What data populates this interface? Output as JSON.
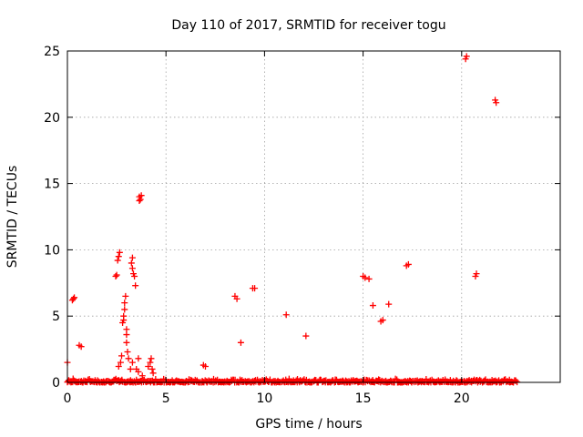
{
  "chart_data": {
    "type": "scatter",
    "title": "Day 110 of 2017, SRMTID for receiver togu",
    "xlabel": "GPS time / hours",
    "ylabel": "SRMTID / TECUs",
    "xlim": [
      0,
      25
    ],
    "ylim": [
      0,
      25
    ],
    "xticks": [
      "0",
      "5",
      "10",
      "15",
      "20"
    ],
    "xtick_values": [
      0,
      5,
      10,
      15,
      20
    ],
    "yticks": [
      "0",
      "5",
      "10",
      "15",
      "20",
      "25"
    ],
    "ytick_values": [
      0,
      5,
      10,
      15,
      20,
      25
    ],
    "grid": true,
    "marker": "plus",
    "color": "#ff0000",
    "series": [
      {
        "name": "SRMTID",
        "points": [
          [
            0.0,
            1.5
          ],
          [
            0.25,
            6.2
          ],
          [
            0.3,
            6.3
          ],
          [
            0.35,
            6.4
          ],
          [
            0.6,
            2.8
          ],
          [
            0.7,
            2.7
          ],
          [
            2.45,
            8.0
          ],
          [
            2.5,
            8.1
          ],
          [
            2.55,
            9.2
          ],
          [
            2.6,
            9.5
          ],
          [
            2.65,
            9.8
          ],
          [
            2.6,
            1.2
          ],
          [
            2.7,
            1.5
          ],
          [
            2.75,
            2.0
          ],
          [
            2.8,
            4.5
          ],
          [
            2.85,
            5.0
          ],
          [
            2.9,
            6.0
          ],
          [
            2.95,
            6.5
          ],
          [
            2.9,
            5.5
          ],
          [
            2.85,
            4.7
          ],
          [
            3.0,
            4.0
          ],
          [
            3.0,
            3.0
          ],
          [
            3.05,
            2.3
          ],
          [
            3.1,
            1.8
          ],
          [
            3.0,
            3.6
          ],
          [
            3.2,
            1.0
          ],
          [
            3.25,
            9.0
          ],
          [
            3.3,
            9.4
          ],
          [
            3.3,
            8.6
          ],
          [
            3.35,
            8.2
          ],
          [
            3.4,
            8.0
          ],
          [
            3.45,
            7.3
          ],
          [
            3.3,
            1.5
          ],
          [
            3.5,
            1.0
          ],
          [
            3.6,
            1.8
          ],
          [
            3.65,
            14.0
          ],
          [
            3.7,
            13.8
          ],
          [
            3.65,
            13.7
          ],
          [
            3.75,
            14.1
          ],
          [
            3.6,
            0.8
          ],
          [
            3.8,
            0.5
          ],
          [
            4.1,
            1.2
          ],
          [
            4.2,
            1.5
          ],
          [
            4.25,
            1.8
          ],
          [
            4.3,
            1.0
          ],
          [
            4.35,
            0.7
          ],
          [
            6.9,
            1.3
          ],
          [
            7.0,
            1.2
          ],
          [
            8.5,
            6.5
          ],
          [
            8.6,
            6.3
          ],
          [
            8.8,
            3.0
          ],
          [
            9.4,
            7.1
          ],
          [
            9.5,
            7.1
          ],
          [
            11.1,
            5.1
          ],
          [
            12.1,
            3.5
          ],
          [
            15.0,
            8.0
          ],
          [
            15.1,
            7.9
          ],
          [
            15.3,
            7.8
          ],
          [
            15.5,
            5.8
          ],
          [
            15.9,
            4.6
          ],
          [
            16.0,
            4.7
          ],
          [
            16.3,
            5.9
          ],
          [
            17.2,
            8.8
          ],
          [
            17.3,
            8.9
          ],
          [
            20.2,
            24.4
          ],
          [
            20.25,
            24.6
          ],
          [
            20.7,
            8.0
          ],
          [
            20.75,
            8.2
          ],
          [
            21.7,
            21.3
          ],
          [
            21.75,
            21.1
          ]
        ],
        "baseline": {
          "x_range": [
            0,
            22.8
          ],
          "typical_y_range": [
            0,
            0.3
          ],
          "note": "dense band of near-zero values spanning the day"
        }
      }
    ]
  }
}
